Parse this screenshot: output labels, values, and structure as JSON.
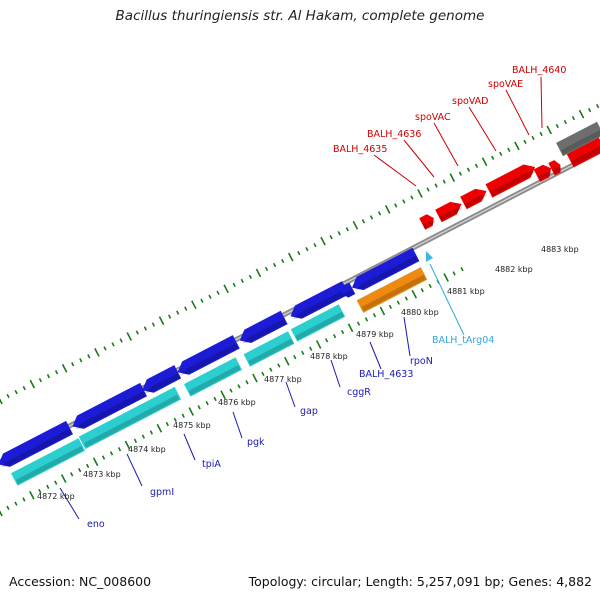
{
  "title": "Bacillus thuringiensis str. Al Hakam, complete genome",
  "accession_text": "Accession: NC_008600",
  "summary_text": "Topology: circular; Length: 5,257,091 bp; Genes: 4,882",
  "colors": {
    "forward_gene": "#ee0000",
    "reverse_gene": "#1c1cd6",
    "cds_cyan": "#2bcfcf",
    "cds_orange": "#ef8a10",
    "other_feature": "#6e6e6e",
    "trna": "#3ab8e8",
    "tick_green": "#1a7a1a",
    "backbone": "#8c8c8c",
    "red_label": "#cc0000",
    "blue_label": "#1a1ab0",
    "trna_label": "#30a8e0"
  },
  "kbp_labels": [
    "4872 kbp",
    "4873 kbp",
    "4874 kbp",
    "4875 kbp",
    "4876 kbp",
    "4877 kbp",
    "4878 kbp",
    "4879 kbp",
    "4880 kbp",
    "4881 kbp",
    "4882 kbp",
    "4883 kbp"
  ],
  "top_gene_labels": [
    "BALH_4635",
    "BALH_4636",
    "spoVAC",
    "spoVAD",
    "spoVAE",
    "BALH_4640"
  ],
  "bottom_gene_labels": [
    "eno",
    "gpmI",
    "tpiA",
    "pgk",
    "gap",
    "cggR",
    "BALH_4633",
    "rpoN"
  ],
  "trna_label": "BALH_tArg04"
}
